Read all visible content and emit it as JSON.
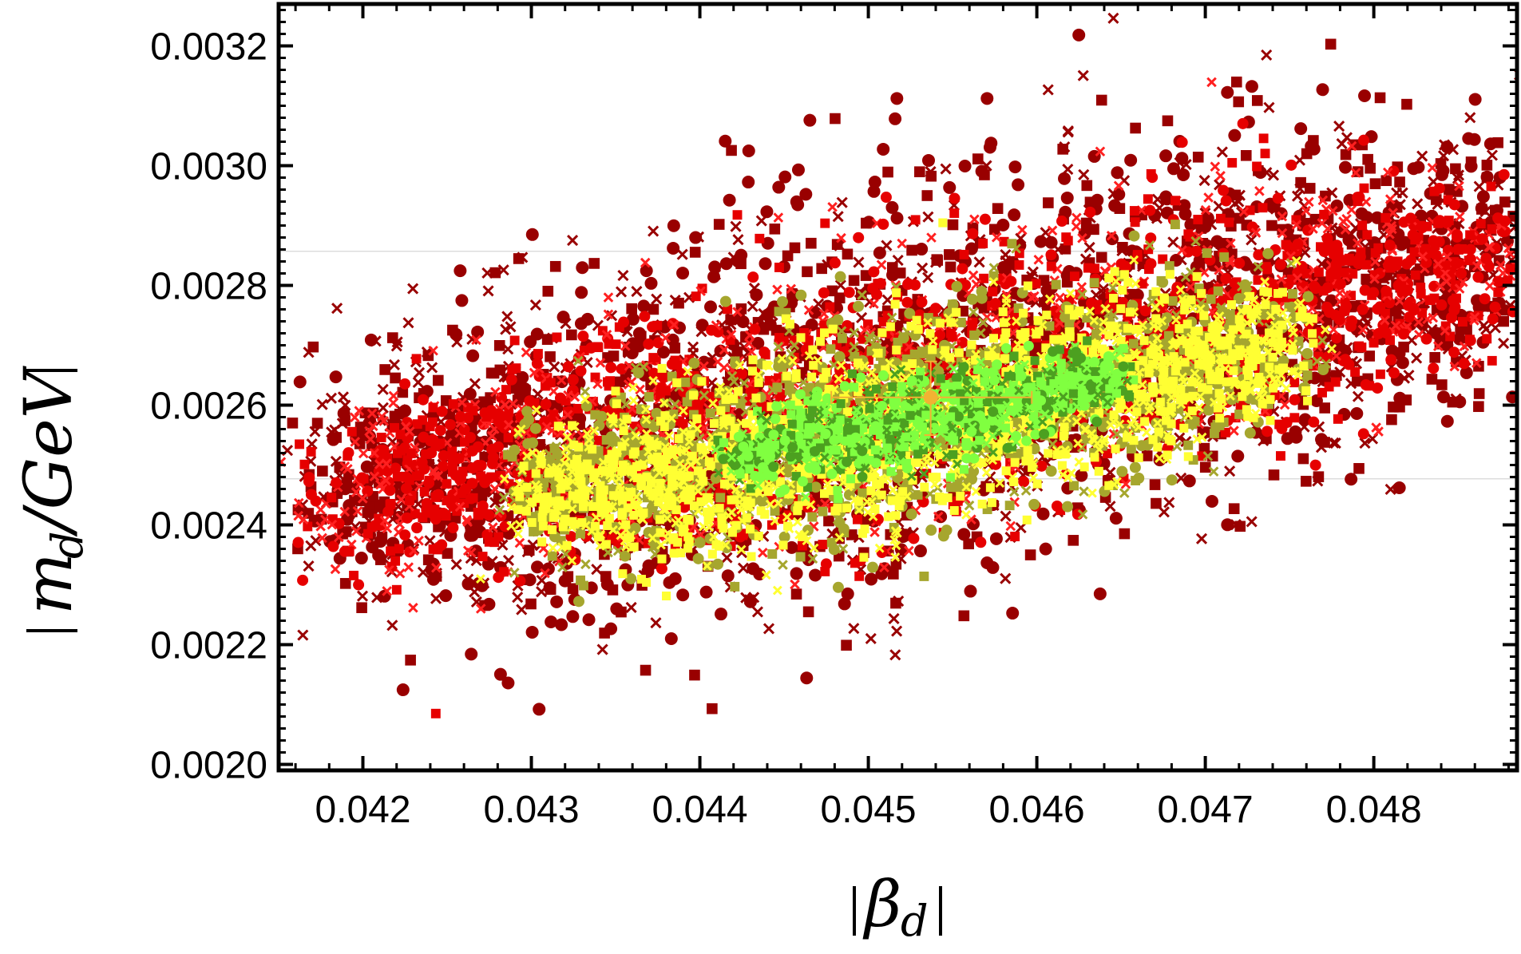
{
  "chart_data": {
    "type": "scatter",
    "title": "",
    "xlabel": "|β_d|",
    "ylabel": "|m_d/GeV|",
    "xlim": [
      0.0415,
      0.04885
    ],
    "ylim": [
      0.00199,
      0.00327
    ],
    "x_ticks": [
      0.042,
      0.043,
      0.044,
      0.045,
      0.046,
      0.047,
      0.048
    ],
    "x_tick_labels": [
      "0.042",
      "0.043",
      "0.044",
      "0.045",
      "0.046",
      "0.047",
      "0.048"
    ],
    "y_ticks": [
      0.002,
      0.0022,
      0.0024,
      0.0026,
      0.0028,
      0.003,
      0.0032
    ],
    "y_tick_labels": [
      "0.0020",
      "0.0022",
      "0.0024",
      "0.0026",
      "0.0028",
      "0.0030",
      "0.0032"
    ],
    "grid": false,
    "reference_lines_y": [
      0.002477,
      0.002857
    ],
    "colors": {
      "dark_red": "#990000",
      "red": "#e60000",
      "red_cross": "#ff2020",
      "olive": "#a6a62e",
      "yellow": "#ffff33",
      "green_light": "#80ff40",
      "green_dark": "#4ca020",
      "best_fit": "#f2b233",
      "reference_line": "#dddddd"
    },
    "series": [
      {
        "marker": "dark red circles, squares and crosses",
        "color": "#990000",
        "region": "outer band",
        "centerline_x": [
          0.0418,
          0.0488
        ],
        "centerline_y": [
          0.00245,
          0.00285
        ],
        "half_width_y": 0.00036
      },
      {
        "marker": "red circles, squares and crosses",
        "color": "#e60000",
        "region": "outer band",
        "centerline_x": [
          0.0419,
          0.0487
        ],
        "centerline_y": [
          0.00244,
          0.00284
        ],
        "half_width_y": 0.00024
      },
      {
        "marker": "olive circles, squares and crosses",
        "color": "#a6a62e",
        "region": "middle band",
        "centerline_x": [
          0.043,
          0.0475
        ],
        "centerline_y": [
          0.00245,
          0.00271
        ],
        "half_width_y": 0.0002
      },
      {
        "marker": "yellow squares and crosses",
        "color": "#ffff33",
        "region": "middle band",
        "centerline_x": [
          0.043,
          0.0475
        ],
        "centerline_y": [
          0.00244,
          0.0027
        ],
        "half_width_y": 0.00017
      },
      {
        "marker": "green circles and crosses",
        "color": "#80ff40",
        "region": "inner core",
        "centerline_x": [
          0.0442,
          0.0465
        ],
        "centerline_y": [
          0.00251,
          0.00265
        ],
        "half_width_y": 8e-05
      }
    ],
    "best_fit_point": {
      "x": 0.04537,
      "y": 0.002613,
      "x_error": [
        0.04478,
        0.04597
      ],
      "y_error": [
        0.00255,
        0.002673
      ],
      "color": "#f2b233"
    }
  }
}
